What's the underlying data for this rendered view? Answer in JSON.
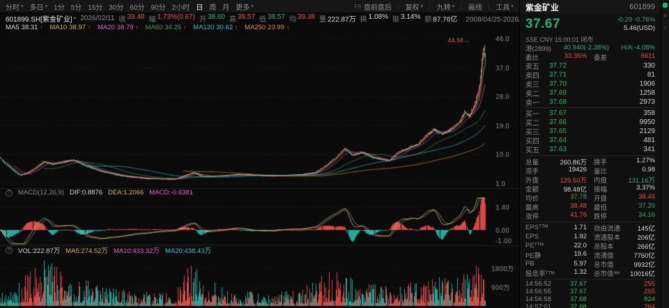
{
  "colors": {
    "red": "#e0524a",
    "green": "#2fae72",
    "green2": "#3d9e57",
    "chart_up": "#d24b45",
    "chart_down": "#28a79d",
    "yellow": "#d8b35c",
    "magenta": "#df5fd0",
    "cyan": "#3fb9da",
    "orange": "#e08f45"
  },
  "toolbar": {
    "left": [
      {
        "label": "分时"
      },
      {
        "label": "多日"
      },
      {
        "label": "1分"
      },
      {
        "label": "5分"
      },
      {
        "label": "15分"
      },
      {
        "label": "30分"
      },
      {
        "label": "60分"
      },
      {
        "label": "90分"
      },
      {
        "label": "2小时"
      },
      {
        "label": "日"
      },
      {
        "label": "周"
      },
      {
        "label": "月"
      },
      {
        "label": "更多"
      }
    ],
    "f9": "F9",
    "pre_post": "盘前盘后",
    "adjust": "复权",
    "nine": "九转",
    "draw": "画线",
    "tools": "工具"
  },
  "info": {
    "symbol": "601899.SH[紫金矿业]",
    "date": "2026/02/11",
    "pairs": [
      {
        "l": "收",
        "v": "39.48"
      },
      {
        "l": "幅",
        "v": "1.73%(0.67)"
      },
      {
        "l": "开",
        "v": "38.60"
      },
      {
        "l": "高",
        "v": "39.57"
      },
      {
        "l": "低",
        "v": "38.57"
      },
      {
        "l": "均",
        "v": "39.38"
      },
      {
        "l": "量",
        "v": "222.87万"
      },
      {
        "l": "换",
        "v": "1.08%"
      },
      {
        "l": "振",
        "v": "3.14%"
      },
      {
        "l": "额",
        "v": "87.76亿"
      }
    ],
    "range": "2008/04/25-2026/03/05(4338日)"
  },
  "ma": [
    {
      "label": "MA5",
      "value": "38.31",
      "dir": "↑"
    },
    {
      "label": "MA10",
      "value": "38.97",
      "dir": "↑"
    },
    {
      "label": "MA20",
      "value": "38.79",
      "dir": "↑"
    },
    {
      "label": "MA60",
      "value": "34.25",
      "dir": "↑"
    },
    {
      "label": "MA120",
      "value": "30.62",
      "dir": "↑"
    },
    {
      "label": "MA250",
      "value": "23.99",
      "dir": "↑"
    }
  ],
  "macd_row": {
    "title": "MACD(12,26,9)",
    "dif": "DIF:0.8876",
    "dea": "DEA:1.2066",
    "macd": "MACD:-0.6381"
  },
  "vol_row": {
    "vol": "VOL:222.87万",
    "ma5": "MA5:274.52万",
    "ma10": "MA10:433.32万",
    "ma20": "MA20:438.43万"
  },
  "quote": {
    "name": "紫金矿业",
    "code": "601899",
    "price": "37.67",
    "change": "-0.29 -0.76%",
    "usd": "5.46(USD)",
    "market": "SSE CNY 15:00:01 闭市",
    "hk_label": "港(2899)",
    "hk_value": "40.940(-2.38%)",
    "ha": "H/A:-4.08%"
  },
  "weibi": {
    "l1": "委比",
    "v1": "33.35%",
    "l2": "委差",
    "v2": "6611"
  },
  "orderbook": {
    "asks": [
      {
        "label": "卖五",
        "price": "37.72",
        "vol": "330"
      },
      {
        "label": "卖四",
        "price": "37.71",
        "vol": "81"
      },
      {
        "label": "卖三",
        "price": "37.70",
        "vol": "1906"
      },
      {
        "label": "卖二",
        "price": "37.69",
        "vol": "1258"
      },
      {
        "label": "卖一",
        "price": "37.68",
        "vol": "2973"
      }
    ],
    "bids": [
      {
        "label": "买一",
        "price": "37.67",
        "vol": "358"
      },
      {
        "label": "买二",
        "price": "37.66",
        "vol": "9950"
      },
      {
        "label": "买三",
        "price": "37.65",
        "vol": "2129"
      },
      {
        "label": "买四",
        "price": "37.64",
        "vol": "481"
      },
      {
        "label": "买五",
        "price": "37.63",
        "vol": "341"
      }
    ]
  },
  "stats": [
    {
      "l1": "总量",
      "v1": "260.86万",
      "l2": "换手",
      "v2": "1.27%"
    },
    {
      "l1": "现手",
      "v1": "19426",
      "l2": "量比",
      "v2": "0.98"
    },
    {
      "l1": "外盘",
      "v1": "129.50万",
      "l2": "内盘",
      "v2": "131.16万"
    },
    {
      "l1": "金额",
      "v1": "98.48亿",
      "l2": "振幅",
      "v2": "3.37%"
    },
    {
      "l1": "均价",
      "v1": "37.78",
      "l2": "开盘",
      "v2": "38.46"
    },
    {
      "l1": "最高",
      "v1": "38.48",
      "l2": "最低",
      "v2": "37.20"
    },
    {
      "l1": "涨停",
      "v1": "41.76",
      "l2": "跌停",
      "v2": "34.16"
    }
  ],
  "fund": [
    {
      "l1": "EPSᵀᵀᴹ",
      "v1": "1.71",
      "l2": "自由流通",
      "v2": "145亿"
    },
    {
      "l1": "EPS",
      "v1": "1.92",
      "l2": "流通股本",
      "v2": "206亿"
    },
    {
      "l1": "PEᵀᵀᴹ",
      "v1": "22.0",
      "l2": "总股本",
      "v2": "266亿"
    },
    {
      "l1": "PE静",
      "v1": "19.6",
      "l2": "流通值",
      "v2": "7760亿"
    },
    {
      "l1": "PB",
      "v1": "5.97",
      "l2": "总市值",
      "v2": "9932亿"
    },
    {
      "l1": "股息率ᵀᵀᴹ",
      "v1": "1.32",
      "l2": "总市值ᴬᴴ",
      "v2": "10016亿"
    }
  ],
  "ticks": [
    {
      "time": "14:56:52",
      "price": "37.67",
      "vol": "255"
    },
    {
      "time": "14:56:55",
      "price": "37.67",
      "vol": "255"
    },
    {
      "time": "14:56:58",
      "price": "37.68",
      "vol": "824"
    },
    {
      "time": "14:57:01",
      "price": "37.68",
      "vol": "264"
    }
  ],
  "chart_data": {
    "type": "candlestick",
    "title": "601899.SH 紫金矿业 日K",
    "date_range": "2008/04/25-2026/03/05",
    "sessions": 4338,
    "last_close": 37.67,
    "period_high": 44.94,
    "peak_label": "44.94→",
    "price_axis": [
      "46.0",
      "37.0",
      "28.0",
      "19.0",
      "10.0",
      "1.0"
    ],
    "macd_axis": [
      "1.40",
      "0.00",
      "-1.00"
    ],
    "vol_axis": [
      {
        "label": "1800万",
        "value": 18000000
      },
      {
        "label": "900万",
        "value": 9000000
      }
    ],
    "candle_count": 660,
    "vol_max": 23500000,
    "price_anchors": [
      [
        0.0,
        8.8
      ],
      [
        0.01,
        7.0
      ],
      [
        0.03,
        4.6
      ],
      [
        0.04,
        3.4
      ],
      [
        0.06,
        4.6
      ],
      [
        0.09,
        7.8
      ],
      [
        0.105,
        6.8
      ],
      [
        0.125,
        7.6
      ],
      [
        0.15,
        8.2
      ],
      [
        0.175,
        6.4
      ],
      [
        0.21,
        4.6
      ],
      [
        0.25,
        3.3
      ],
      [
        0.3,
        2.5
      ],
      [
        0.36,
        2.3
      ],
      [
        0.398,
        4.4
      ],
      [
        0.415,
        3.1
      ],
      [
        0.46,
        3.3
      ],
      [
        0.49,
        3.8
      ],
      [
        0.52,
        3.5
      ],
      [
        0.56,
        3.3
      ],
      [
        0.62,
        3.7
      ],
      [
        0.65,
        4.4
      ],
      [
        0.668,
        6.2
      ],
      [
        0.69,
        8.8
      ],
      [
        0.71,
        11.8
      ],
      [
        0.725,
        9.6
      ],
      [
        0.745,
        10.8
      ],
      [
        0.762,
        9.2
      ],
      [
        0.8,
        7.9
      ],
      [
        0.82,
        10.5
      ],
      [
        0.845,
        12.3
      ],
      [
        0.862,
        13.3
      ],
      [
        0.88,
        16.3
      ],
      [
        0.895,
        17.8
      ],
      [
        0.91,
        16.2
      ],
      [
        0.93,
        18.0
      ],
      [
        0.945,
        19.8
      ],
      [
        0.958,
        23.2
      ],
      [
        0.968,
        21.8
      ],
      [
        0.978,
        25.5
      ],
      [
        0.986,
        29.5
      ],
      [
        0.9935,
        40.5
      ],
      [
        0.9965,
        44.2
      ],
      [
        1.0,
        37.7
      ]
    ],
    "vol_anchors": [
      [
        0.0,
        0.3
      ],
      [
        0.03,
        0.45
      ],
      [
        0.06,
        0.7
      ],
      [
        0.09,
        0.95
      ],
      [
        0.13,
        0.75
      ],
      [
        0.17,
        0.6
      ],
      [
        0.21,
        0.45
      ],
      [
        0.27,
        0.3
      ],
      [
        0.33,
        0.28
      ],
      [
        0.37,
        0.45
      ],
      [
        0.398,
        1.0
      ],
      [
        0.43,
        0.55
      ],
      [
        0.47,
        0.35
      ],
      [
        0.52,
        0.3
      ],
      [
        0.57,
        0.28
      ],
      [
        0.62,
        0.35
      ],
      [
        0.655,
        0.6
      ],
      [
        0.69,
        0.8
      ],
      [
        0.71,
        0.65
      ],
      [
        0.75,
        0.5
      ],
      [
        0.79,
        0.42
      ],
      [
        0.83,
        0.48
      ],
      [
        0.87,
        0.55
      ],
      [
        0.9,
        0.62
      ],
      [
        0.93,
        0.58
      ],
      [
        0.955,
        0.7
      ],
      [
        0.975,
        0.85
      ],
      [
        0.99,
        1.0
      ],
      [
        1.0,
        0.9
      ]
    ]
  }
}
